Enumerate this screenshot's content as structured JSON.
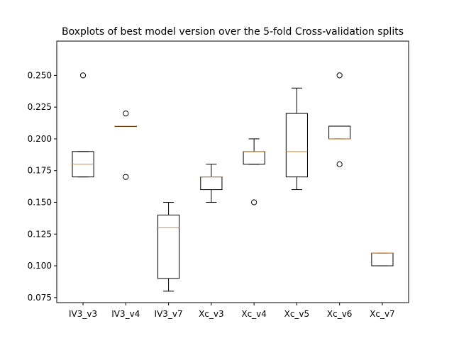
{
  "chart_data": {
    "type": "boxplot",
    "title": "Boxplots of best model version over the 5-fold Cross-validation splits",
    "xlabel": "",
    "ylabel": "",
    "ylim": [
      0.071,
      0.277
    ],
    "yticks": [
      "0.075",
      "0.100",
      "0.125",
      "0.150",
      "0.175",
      "0.200",
      "0.225",
      "0.250"
    ],
    "ytick_values": [
      0.075,
      0.1,
      0.125,
      0.15,
      0.175,
      0.2,
      0.225,
      0.25
    ],
    "grid": false,
    "box_color": "#000000",
    "median_color": "#ff7f0e",
    "categories": [
      "IV3_v3",
      "IV3_v4",
      "IV3_v7",
      "Xc_v3",
      "Xc_v4",
      "Xc_v5",
      "Xc_v6",
      "Xc_v7"
    ],
    "boxes": [
      {
        "label": "IV3_v3",
        "whislo": 0.17,
        "q1": 0.17,
        "med": 0.18,
        "q3": 0.19,
        "whishi": 0.19,
        "fliers": [
          0.25
        ]
      },
      {
        "label": "IV3_v4",
        "whislo": 0.21,
        "q1": 0.21,
        "med": 0.21,
        "q3": 0.21,
        "whishi": 0.21,
        "fliers": [
          0.17,
          0.22
        ]
      },
      {
        "label": "IV3_v7",
        "whislo": 0.08,
        "q1": 0.09,
        "med": 0.13,
        "q3": 0.14,
        "whishi": 0.15,
        "fliers": []
      },
      {
        "label": "Xc_v3",
        "whislo": 0.15,
        "q1": 0.16,
        "med": 0.17,
        "q3": 0.17,
        "whishi": 0.18,
        "fliers": []
      },
      {
        "label": "Xc_v4",
        "whislo": 0.18,
        "q1": 0.18,
        "med": 0.19,
        "q3": 0.19,
        "whishi": 0.2,
        "fliers": [
          0.15
        ]
      },
      {
        "label": "Xc_v5",
        "whislo": 0.16,
        "q1": 0.17,
        "med": 0.19,
        "q3": 0.22,
        "whishi": 0.24,
        "fliers": []
      },
      {
        "label": "Xc_v6",
        "whislo": 0.2,
        "q1": 0.2,
        "med": 0.2,
        "q3": 0.21,
        "whishi": 0.21,
        "fliers": [
          0.18,
          0.25
        ]
      },
      {
        "label": "Xc_v7",
        "whislo": 0.1,
        "q1": 0.1,
        "med": 0.11,
        "q3": 0.11,
        "whishi": 0.11,
        "fliers": []
      }
    ]
  }
}
